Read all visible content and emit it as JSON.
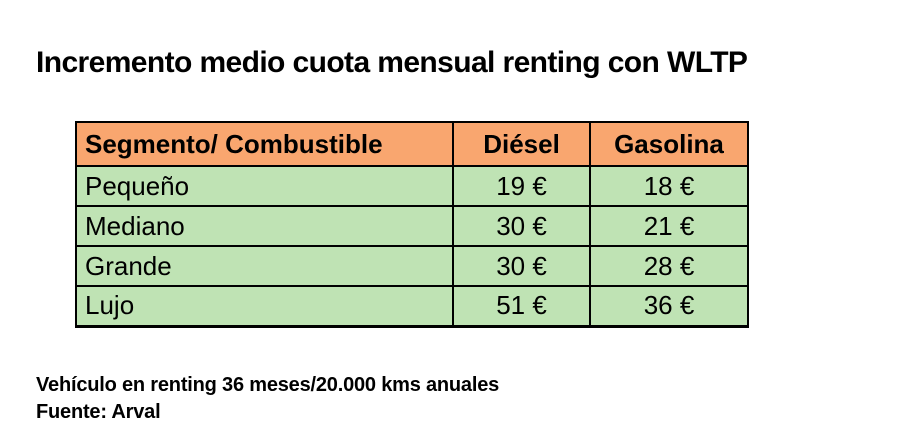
{
  "title": "Incremento medio cuota mensual renting con WLTP",
  "table": {
    "headers": [
      "Segmento/ Combustible",
      "Diésel",
      "Gasolina"
    ],
    "rows": [
      [
        "Pequeño",
        "19 €",
        "18 €"
      ],
      [
        "Mediano",
        "30 €",
        "21 €"
      ],
      [
        "Grande",
        "30 €",
        "28 €"
      ],
      [
        "Lujo",
        "51 €",
        "36 €"
      ]
    ]
  },
  "footer": {
    "line1": "Vehículo en renting 36 meses/20.000 kms anuales",
    "line2": "Fuente: Arval"
  },
  "colors": {
    "header_bg": "#F9A66F",
    "row_bg": "#BFE3B4",
    "border_color": "#000000",
    "text_color": "#000000",
    "page_bg": "#FFFFFF"
  },
  "chart_data": {
    "type": "table",
    "title": "Incremento medio cuota mensual renting con WLTP",
    "categories": [
      "Pequeño",
      "Mediano",
      "Grande",
      "Lujo"
    ],
    "series": [
      {
        "name": "Diésel",
        "values": [
          19,
          30,
          30,
          51
        ]
      },
      {
        "name": "Gasolina",
        "values": [
          18,
          21,
          28,
          36
        ]
      }
    ],
    "unit": "€",
    "column_headers": [
      "Segmento/ Combustible",
      "Diésel",
      "Gasolina"
    ],
    "annotations": [
      "Vehículo en renting 36 meses/20.000 kms anuales",
      "Fuente: Arval"
    ]
  }
}
